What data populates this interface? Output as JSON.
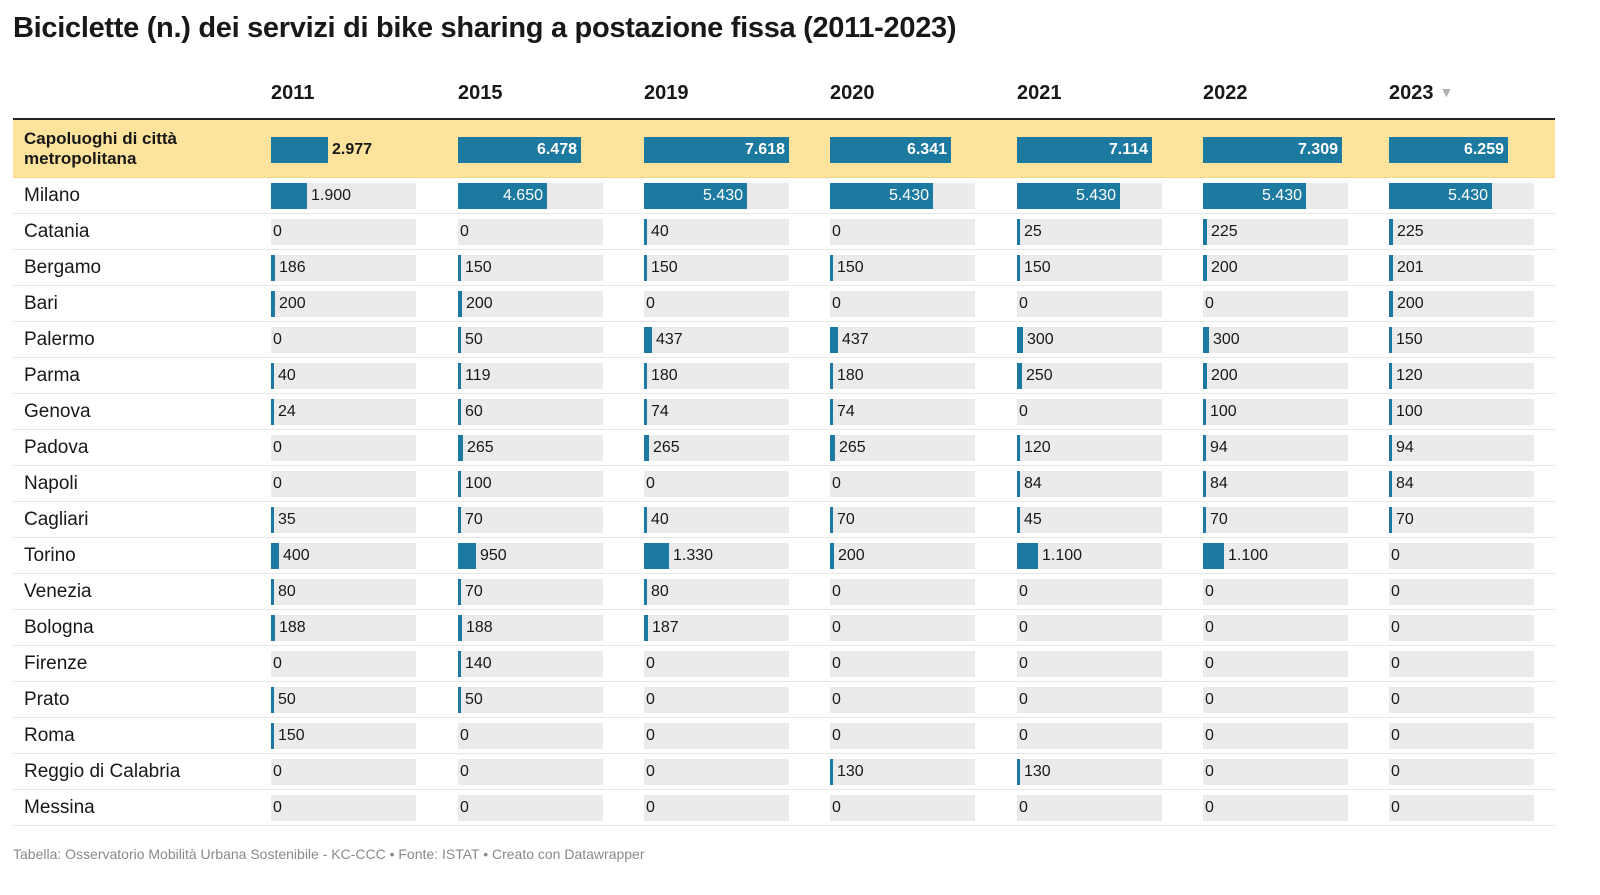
{
  "title": "Biciclette (n.) dei servizi di bike sharing a postazione fissa (2011-2023)",
  "footer": "Tabella: Osservatorio Mobilità Urbana Sostenibile - KC-CCC • Fonte: ISTAT • Creato con Datawrapper",
  "colors": {
    "bar": "#1c7aa1",
    "bar_background": "#ebebeb",
    "highlight_row": "#fde39c"
  },
  "chart_data": {
    "type": "table",
    "title": "Biciclette (n.) dei servizi di bike sharing a postazione fissa (2011-2023)",
    "sorted_by": "2023",
    "sort_order": "descending",
    "columns": [
      "2011",
      "2015",
      "2019",
      "2020",
      "2021",
      "2022",
      "2023"
    ],
    "rows": [
      {
        "label": "Capoluoghi di città metropolitana",
        "highlight": true,
        "values": [
          2977,
          6478,
          7618,
          6341,
          7114,
          7309,
          6259
        ],
        "display": [
          "2.977",
          "6.478",
          "7.618",
          "6.341",
          "7.114",
          "7.309",
          "6.259"
        ]
      },
      {
        "label": "Milano",
        "values": [
          1900,
          4650,
          5430,
          5430,
          5430,
          5430,
          5430
        ],
        "display": [
          "1.900",
          "4.650",
          "5.430",
          "5.430",
          "5.430",
          "5.430",
          "5.430"
        ]
      },
      {
        "label": "Catania",
        "values": [
          0,
          0,
          40,
          0,
          25,
          225,
          225
        ],
        "display": [
          "0",
          "0",
          "40",
          "0",
          "25",
          "225",
          "225"
        ]
      },
      {
        "label": "Bergamo",
        "values": [
          186,
          150,
          150,
          150,
          150,
          200,
          201
        ],
        "display": [
          "186",
          "150",
          "150",
          "150",
          "150",
          "200",
          "201"
        ]
      },
      {
        "label": "Bari",
        "values": [
          200,
          200,
          0,
          0,
          0,
          0,
          200
        ],
        "display": [
          "200",
          "200",
          "0",
          "0",
          "0",
          "0",
          "200"
        ]
      },
      {
        "label": "Palermo",
        "values": [
          0,
          50,
          437,
          437,
          300,
          300,
          150
        ],
        "display": [
          "0",
          "50",
          "437",
          "437",
          "300",
          "300",
          "150"
        ]
      },
      {
        "label": "Parma",
        "values": [
          40,
          119,
          180,
          180,
          250,
          200,
          120
        ],
        "display": [
          "40",
          "119",
          "180",
          "180",
          "250",
          "200",
          "120"
        ]
      },
      {
        "label": "Genova",
        "values": [
          24,
          60,
          74,
          74,
          0,
          100,
          100
        ],
        "display": [
          "24",
          "60",
          "74",
          "74",
          "0",
          "100",
          "100"
        ]
      },
      {
        "label": "Padova",
        "values": [
          0,
          265,
          265,
          265,
          120,
          94,
          94
        ],
        "display": [
          "0",
          "265",
          "265",
          "265",
          "120",
          "94",
          "94"
        ]
      },
      {
        "label": "Napoli",
        "values": [
          0,
          100,
          0,
          0,
          84,
          84,
          84
        ],
        "display": [
          "0",
          "100",
          "0",
          "0",
          "84",
          "84",
          "84"
        ]
      },
      {
        "label": "Cagliari",
        "values": [
          35,
          70,
          40,
          70,
          45,
          70,
          70
        ],
        "display": [
          "35",
          "70",
          "40",
          "70",
          "45",
          "70",
          "70"
        ]
      },
      {
        "label": "Torino",
        "values": [
          400,
          950,
          1330,
          200,
          1100,
          1100,
          0
        ],
        "display": [
          "400",
          "950",
          "1.330",
          "200",
          "1.100",
          "1.100",
          "0"
        ]
      },
      {
        "label": "Venezia",
        "values": [
          80,
          70,
          80,
          0,
          0,
          0,
          0
        ],
        "display": [
          "80",
          "70",
          "80",
          "0",
          "0",
          "0",
          "0"
        ]
      },
      {
        "label": "Bologna",
        "values": [
          188,
          188,
          187,
          0,
          0,
          0,
          0
        ],
        "display": [
          "188",
          "188",
          "187",
          "0",
          "0",
          "0",
          "0"
        ]
      },
      {
        "label": "Firenze",
        "values": [
          0,
          140,
          0,
          0,
          0,
          0,
          0
        ],
        "display": [
          "0",
          "140",
          "0",
          "0",
          "0",
          "0",
          "0"
        ]
      },
      {
        "label": "Prato",
        "values": [
          50,
          50,
          0,
          0,
          0,
          0,
          0
        ],
        "display": [
          "50",
          "50",
          "0",
          "0",
          "0",
          "0",
          "0"
        ]
      },
      {
        "label": "Roma",
        "values": [
          150,
          0,
          0,
          0,
          0,
          0,
          0
        ],
        "display": [
          "150",
          "0",
          "0",
          "0",
          "0",
          "0",
          "0"
        ]
      },
      {
        "label": "Reggio di Calabria",
        "values": [
          0,
          0,
          0,
          130,
          130,
          0,
          0
        ],
        "display": [
          "0",
          "0",
          "0",
          "130",
          "130",
          "0",
          "0"
        ]
      },
      {
        "label": "Messina",
        "values": [
          0,
          0,
          0,
          0,
          0,
          0,
          0
        ],
        "display": [
          "0",
          "0",
          "0",
          "0",
          "0",
          "0",
          "0"
        ]
      }
    ]
  }
}
